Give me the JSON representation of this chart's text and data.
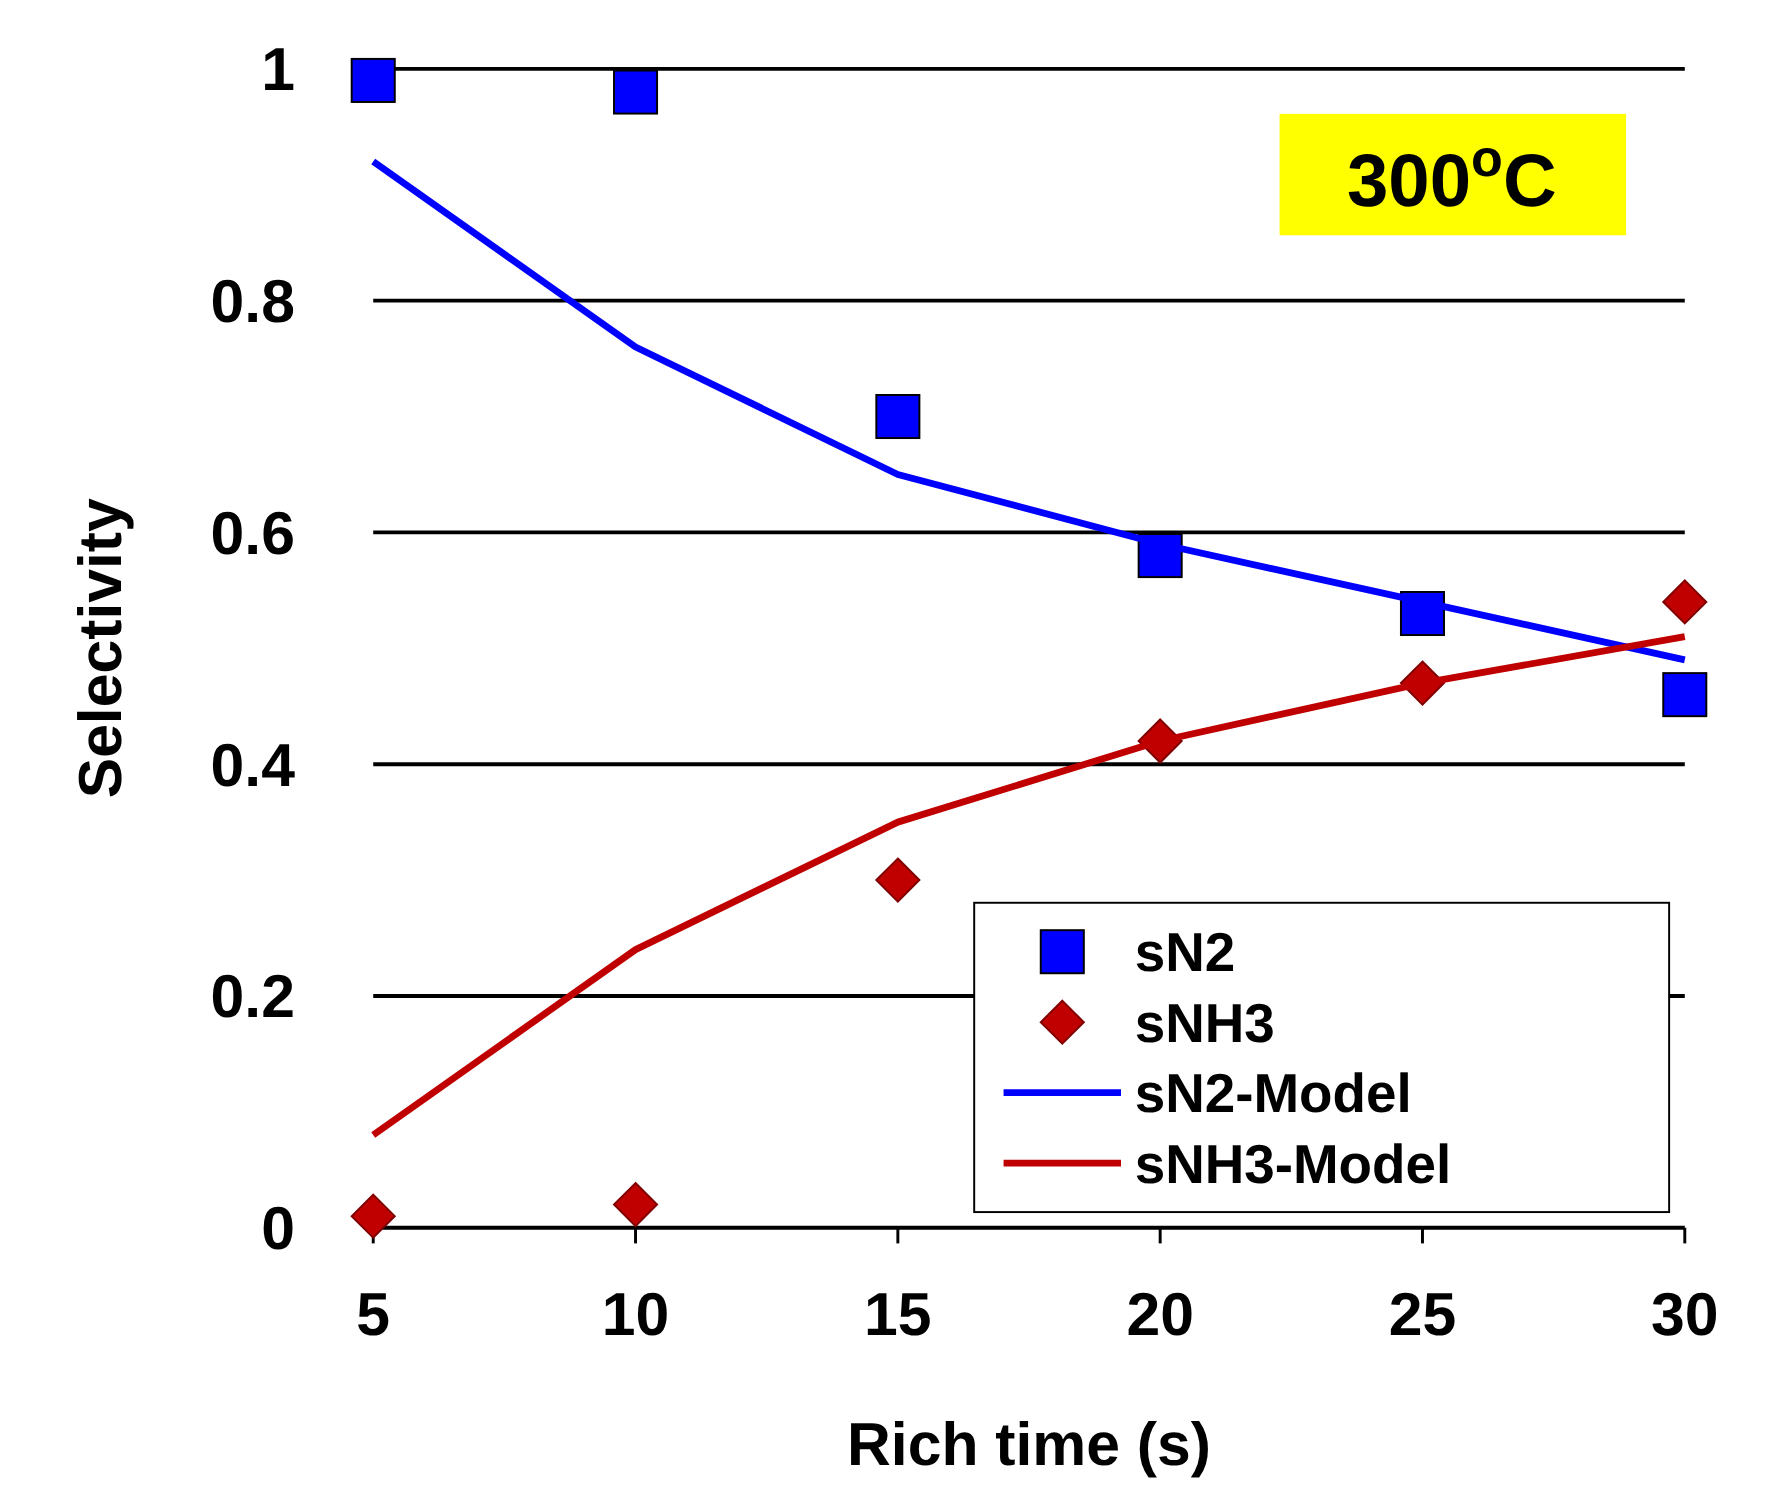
{
  "chart_data": {
    "type": "scatter",
    "xlabel": "Rich time (s)",
    "ylabel": "Selectivity",
    "x": [
      5,
      10,
      15,
      20,
      25,
      30
    ],
    "series": [
      {
        "name": "sN2",
        "color": "#0000ff",
        "marker": "square",
        "values": [
          0.99,
          0.98,
          0.7,
          0.58,
          0.53,
          0.46
        ]
      },
      {
        "name": "sNH3",
        "color": "#c00000",
        "marker": "diamond",
        "values": [
          0.01,
          0.02,
          0.3,
          0.42,
          0.47,
          0.54
        ]
      },
      {
        "name": "sN2-Model",
        "type": "line",
        "color": "#0000ff",
        "marker": "none",
        "values": [
          0.92,
          0.76,
          0.65,
          0.59,
          0.54,
          0.49
        ]
      },
      {
        "name": "sNH3-Model",
        "type": "line",
        "color": "#c00000",
        "marker": "none",
        "values": [
          0.08,
          0.24,
          0.35,
          0.42,
          0.47,
          0.51
        ]
      }
    ],
    "xlim": [
      5,
      30
    ],
    "xticks": [
      5,
      10,
      15,
      20,
      25,
      30
    ],
    "ylim": [
      0,
      1
    ],
    "yticks": [
      0,
      0.2,
      0.4,
      0.6,
      0.8,
      1
    ],
    "grid": "y",
    "legend": "bottom right",
    "annotations": [
      "300$^{o}$C"
    ]
  }
}
